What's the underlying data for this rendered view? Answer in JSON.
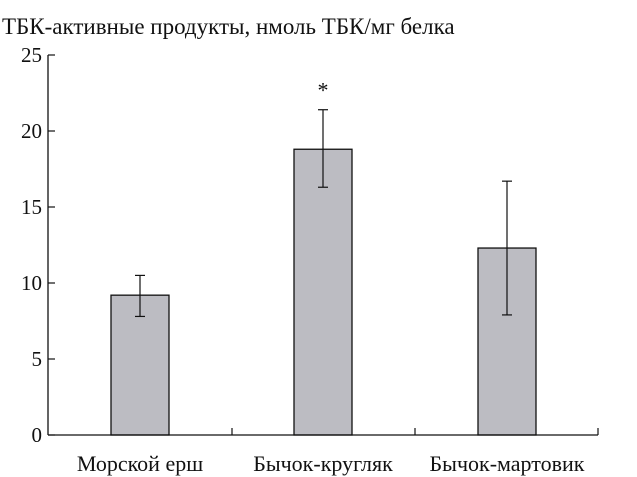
{
  "chart_data": {
    "type": "bar",
    "title": "ТБК-активные продукты, нмоль ТБК/мг белка",
    "categories": [
      "Морской ерш",
      "Бычок-кругляк",
      "Бычок-мартовик"
    ],
    "values": [
      9.2,
      18.8,
      12.3
    ],
    "error_low": [
      7.8,
      16.3,
      7.9
    ],
    "error_high": [
      10.5,
      21.4,
      16.7
    ],
    "annotations": [
      "",
      "*",
      ""
    ],
    "ylim": [
      0,
      25
    ],
    "yticks": [
      0,
      5,
      10,
      15,
      20,
      25
    ],
    "xlabel": "",
    "ylabel": "",
    "grid": false,
    "bar_color": "#bcbcc2",
    "edge_color": "#111111"
  }
}
